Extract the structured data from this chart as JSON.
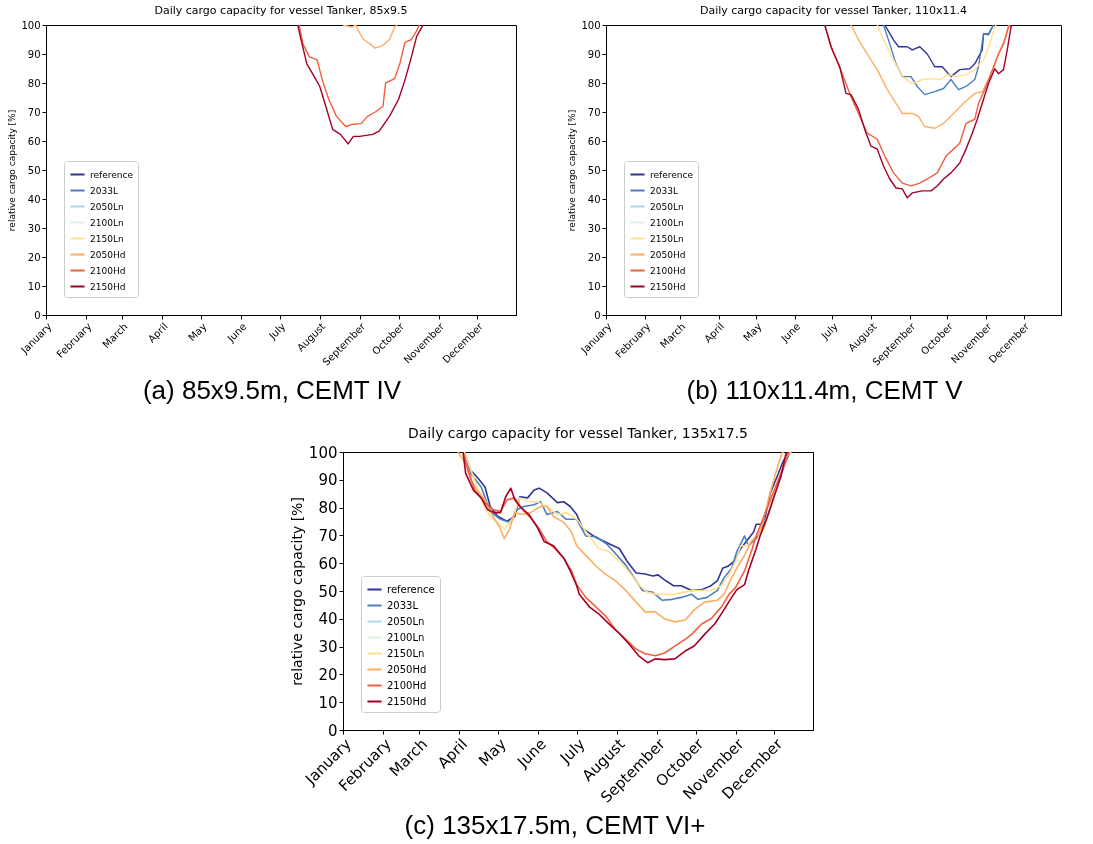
{
  "chart_data": [
    {
      "type": "line",
      "title": "Daily cargo capacity for vessel Tanker, 85x9.5",
      "ylabel": "relative cargo capacity [%]",
      "xlim": [
        "--01-01",
        "--12-31"
      ],
      "ylim": [
        0,
        100
      ],
      "xticks": [
        {
          "value": "--01-01",
          "label": "January"
        },
        {
          "value": "--02-01",
          "label": "February"
        },
        {
          "value": "--03-01",
          "label": "March"
        },
        {
          "value": "--04-01",
          "label": "April"
        },
        {
          "value": "--05-01",
          "label": "May"
        },
        {
          "value": "--06-01",
          "label": "June"
        },
        {
          "value": "--07-01",
          "label": "July"
        },
        {
          "value": "--08-01",
          "label": "August"
        },
        {
          "value": "--09-01",
          "label": "September"
        },
        {
          "value": "--10-01",
          "label": "October"
        },
        {
          "value": "--11-01",
          "label": "November"
        },
        {
          "value": "--12-01",
          "label": "December"
        }
      ],
      "yticks": [
        0,
        10,
        20,
        30,
        40,
        50,
        60,
        70,
        80,
        90,
        100
      ],
      "legend": "bottom left",
      "annotations": [
        "(a) 85x9.5m, CEMT IV"
      ],
      "series": [
        {
          "name": "reference",
          "color": "#313695"
        },
        {
          "name": "2033L",
          "color": "#4a7fc0"
        },
        {
          "name": "2050Ln",
          "color": "#abd9e9"
        },
        {
          "name": "2100Ln",
          "color": "#e0f3e0"
        },
        {
          "name": "2150Ln",
          "color": "#fee090"
        },
        {
          "name": "2050Hd",
          "color": "#fdae61",
          "x": [
            "--08-19",
            "--08-26",
            "--08-29",
            "--08-31",
            "--09-04",
            "--09-09",
            "--09-13",
            "--09-19",
            "--09-24",
            "--09-28",
            "--09-30"
          ],
          "values": [
            100,
            99.3,
            100,
            98,
            95,
            93.5,
            92,
            93,
            95,
            99.3,
            100
          ]
        },
        {
          "name": "2100Hd",
          "color": "#f0603f",
          "x": [
            "--07-16",
            "--07-19",
            "--07-24",
            "--07-30",
            "--08-03",
            "--08-08",
            "--08-14",
            "--08-21",
            "--08-27",
            "--09-02",
            "--09-07",
            "--09-13",
            "--09-19",
            "--09-21",
            "--09-28",
            "--10-02",
            "--10-06",
            "--10-11",
            "--10-15",
            "--10-17"
          ],
          "values": [
            100,
            93.5,
            89,
            88,
            81,
            74.3,
            68.5,
            65,
            65.8,
            66,
            68.5,
            70,
            72,
            80,
            81.5,
            86.6,
            94,
            95,
            98,
            100
          ]
        },
        {
          "name": "2150Hd",
          "color": "#a50026",
          "x": [
            "--07-15",
            "--07-17",
            "--07-22",
            "--07-28",
            "--08-01",
            "--08-05",
            "--08-11",
            "--08-17",
            "--08-23",
            "--08-27",
            "--09-01",
            "--09-11",
            "--09-16",
            "--09-24",
            "--10-01",
            "--10-06",
            "--10-11",
            "--10-15",
            "--10-20"
          ],
          "values": [
            100,
            95.9,
            86.6,
            82,
            78.8,
            73,
            64,
            62.3,
            59,
            61.6,
            61.6,
            62.3,
            63.4,
            68.5,
            74.3,
            81,
            89,
            96,
            100
          ]
        }
      ]
    },
    {
      "type": "line",
      "title": "Daily cargo capacity for vessel Tanker, 110x11.4",
      "ylabel": "relative cargo capacity [%]",
      "xlim": [
        "--01-01",
        "--12-31"
      ],
      "ylim": [
        0,
        100
      ],
      "xticks": [
        {
          "value": "--01-01",
          "label": "January"
        },
        {
          "value": "--02-01",
          "label": "February"
        },
        {
          "value": "--03-01",
          "label": "March"
        },
        {
          "value": "--04-01",
          "label": "April"
        },
        {
          "value": "--05-01",
          "label": "May"
        },
        {
          "value": "--06-01",
          "label": "June"
        },
        {
          "value": "--07-01",
          "label": "July"
        },
        {
          "value": "--08-01",
          "label": "August"
        },
        {
          "value": "--09-01",
          "label": "September"
        },
        {
          "value": "--10-01",
          "label": "October"
        },
        {
          "value": "--11-01",
          "label": "November"
        },
        {
          "value": "--12-01",
          "label": "December"
        }
      ],
      "yticks": [
        0,
        10,
        20,
        30,
        40,
        50,
        60,
        70,
        80,
        90,
        100
      ],
      "legend": "bottom left",
      "annotations": [
        "(b) 110x11.4m, CEMT V"
      ],
      "series": [
        {
          "name": "reference",
          "color": "#313695",
          "x": [
            "--08-12",
            "--08-19",
            "--08-23",
            "--08-30",
            "--09-03",
            "--09-09",
            "--09-15",
            "--09-21",
            "--09-27",
            "--10-04",
            "--10-11",
            "--10-19",
            "--10-23",
            "--10-29",
            "--10-30",
            "--11-03",
            "--11-07"
          ],
          "values": [
            100,
            94.9,
            92.5,
            92.5,
            91.4,
            92.5,
            90,
            85.6,
            85.6,
            82.2,
            84.6,
            84.9,
            86.6,
            91.4,
            96.9,
            96.9,
            100
          ]
        },
        {
          "name": "2033L",
          "color": "#4a7fc0",
          "x": [
            "--08-11",
            "--08-16",
            "--08-21",
            "--08-26",
            "--09-02",
            "--09-07",
            "--09-13",
            "--09-21",
            "--09-28",
            "--10-04",
            "--10-10",
            "--10-16",
            "--10-23",
            "--10-26",
            "--10-30",
            "--11-03",
            "--11-07"
          ],
          "values": [
            100,
            93.5,
            86.6,
            82.2,
            82.2,
            78.8,
            76,
            77,
            78.1,
            81.2,
            77.7,
            78.8,
            81.2,
            85.6,
            96.9,
            96.6,
            100
          ]
        },
        {
          "name": "2050Ln",
          "color": "#abd9e9"
        },
        {
          "name": "2100Ln",
          "color": "#e0f3e0"
        },
        {
          "name": "2150Ln",
          "color": "#fee090",
          "x": [
            "--08-06",
            "--08-11",
            "--08-19",
            "--08-26",
            "--09-03",
            "--09-11",
            "--09-18",
            "--09-26",
            "--10-01",
            "--10-08",
            "--10-16",
            "--10-23",
            "--10-30",
            "--11-04",
            "--11-08",
            "--11-09"
          ],
          "values": [
            100,
            94.9,
            88,
            82.2,
            79.8,
            81.2,
            81.5,
            81.2,
            82.9,
            82.2,
            82.9,
            84.6,
            88,
            93.5,
            99.3,
            100
          ]
        },
        {
          "name": "2050Hd",
          "color": "#fdae61",
          "x": [
            "--07-16",
            "--07-22",
            "--07-29",
            "--08-06",
            "--08-14",
            "--08-21",
            "--08-26",
            "--09-03",
            "--09-08",
            "--09-13",
            "--09-21",
            "--09-28",
            "--10-06",
            "--10-14",
            "--10-23",
            "--10-29",
            "--11-05",
            "--11-11",
            "--11-17",
            "--11-19"
          ],
          "values": [
            100,
            94.9,
            90,
            84.6,
            77.7,
            73,
            69.5,
            69.5,
            68.5,
            65,
            64.4,
            66.1,
            69.5,
            73,
            76.4,
            77,
            83.2,
            90,
            95.9,
            100
          ]
        },
        {
          "name": "2100Hd",
          "color": "#f0603f",
          "x": [
            "--06-25",
            "--07-01",
            "--07-09",
            "--07-16",
            "--07-23",
            "--07-29",
            "--08-06",
            "--08-12",
            "--08-19",
            "--08-26",
            "--09-02",
            "--09-09",
            "--09-15",
            "--09-23",
            "--09-30",
            "--10-06",
            "--10-11",
            "--10-16",
            "--10-23",
            "--10-26",
            "--10-31",
            "--11-05",
            "--11-11",
            "--11-15",
            "--11-19",
            "--11-20"
          ],
          "values": [
            100,
            91.4,
            83.2,
            75.3,
            68.5,
            62.7,
            60.6,
            54.8,
            49,
            45.5,
            44.5,
            45.5,
            46.9,
            49,
            54.8,
            57.2,
            59.2,
            66.1,
            67.5,
            73,
            77.7,
            83.2,
            90,
            93.5,
            99.3,
            100
          ]
        },
        {
          "name": "2150Hd",
          "color": "#a50026",
          "x": [
            "--06-25",
            "--06-30",
            "--07-07",
            "--07-12",
            "--07-16",
            "--07-22",
            "--07-27",
            "--08-01",
            "--08-06",
            "--08-11",
            "--08-16",
            "--08-21",
            "--08-26",
            "--08-30",
            "--09-03",
            "--09-11",
            "--09-18",
            "--09-23",
            "--09-28",
            "--10-04",
            "--10-11",
            "--10-16",
            "--10-21",
            "--10-25",
            "--10-29",
            "--11-03",
            "--11-08",
            "--11-11",
            "--11-15",
            "--11-18",
            "--11-21",
            "--11-22"
          ],
          "values": [
            100,
            92.5,
            85.6,
            76.4,
            76,
            70.9,
            64,
            58.2,
            57.2,
            51.4,
            46.9,
            43.8,
            43.5,
            40.4,
            42.1,
            42.8,
            42.8,
            44.5,
            46.9,
            49,
            52.4,
            57.2,
            62.7,
            67.5,
            73,
            79.8,
            84.9,
            83.2,
            84.6,
            91.4,
            99.3,
            100
          ]
        }
      ]
    },
    {
      "type": "line",
      "title": "Daily cargo capacity for vessel Tanker, 135x17.5",
      "ylabel": "relative cargo capacity [%]",
      "xlim": [
        "--01-01",
        "--12-31"
      ],
      "ylim": [
        0,
        100
      ],
      "xticks": [
        {
          "value": "--01-01",
          "label": "January"
        },
        {
          "value": "--02-01",
          "label": "February"
        },
        {
          "value": "--03-01",
          "label": "March"
        },
        {
          "value": "--04-01",
          "label": "April"
        },
        {
          "value": "--05-01",
          "label": "May"
        },
        {
          "value": "--06-01",
          "label": "June"
        },
        {
          "value": "--07-01",
          "label": "July"
        },
        {
          "value": "--08-01",
          "label": "August"
        },
        {
          "value": "--09-01",
          "label": "September"
        },
        {
          "value": "--10-01",
          "label": "October"
        },
        {
          "value": "--11-01",
          "label": "November"
        },
        {
          "value": "--12-01",
          "label": "December"
        }
      ],
      "yticks": [
        0,
        10,
        20,
        30,
        40,
        50,
        60,
        70,
        80,
        90,
        100
      ],
      "legend": "bottom left",
      "annotations": [
        "(c) 135x17.5m, CEMT VI+"
      ],
      "series": [
        {
          "name": "reference",
          "color": "#313695",
          "x": [
            "--04-05",
            "--04-10",
            "--04-15",
            "--04-21",
            "--04-25",
            "--05-01",
            "--05-08",
            "--05-14",
            "--05-18",
            "--05-24",
            "--05-29",
            "--06-02",
            "--06-08",
            "--06-16",
            "--06-21",
            "--06-26",
            "--07-01",
            "--07-06",
            "--07-14",
            "--07-18",
            "--07-26",
            "--08-03",
            "--08-09",
            "--08-16",
            "--08-23",
            "--08-29",
            "--09-02",
            "--09-07",
            "--09-14",
            "--09-20",
            "--09-28",
            "--10-06",
            "--10-13",
            "--10-18",
            "--10-22",
            "--10-26",
            "--10-31",
            "--11-05",
            "--11-11",
            "--11-15",
            "--11-17",
            "--11-21",
            "--11-24",
            "--11-28",
            "--12-03",
            "--12-08",
            "--12-12",
            "--12-13"
          ],
          "values": [
            100,
            93.3,
            90.9,
            87.4,
            80.4,
            76.8,
            75.1,
            76.8,
            83.9,
            83.5,
            86.3,
            87,
            85.3,
            81.8,
            82.1,
            80.4,
            77.5,
            72.3,
            69.8,
            68.8,
            67,
            65.3,
            60.7,
            56.5,
            56.1,
            55.4,
            55.8,
            54,
            51.9,
            51.9,
            50.2,
            50.5,
            51.9,
            53.7,
            58.2,
            58.9,
            60.7,
            65.3,
            68.8,
            71.2,
            74,
            74,
            76.8,
            85.3,
            90.9,
            96.8,
            99.6,
            100
          ]
        },
        {
          "name": "2033L",
          "color": "#4a7fc0",
          "x": [
            "--04-05",
            "--04-10",
            "--04-18",
            "--04-25",
            "--05-03",
            "--05-10",
            "--05-16",
            "--05-21",
            "--05-29",
            "--06-03",
            "--06-08",
            "--06-16",
            "--06-23",
            "--07-01",
            "--07-08",
            "--07-16",
            "--07-24",
            "--07-31",
            "--08-08",
            "--08-16",
            "--08-21",
            "--08-29",
            "--09-05",
            "--09-13",
            "--09-20",
            "--09-28",
            "--10-03",
            "--10-10",
            "--10-18",
            "--10-23",
            "--10-29",
            "--11-02",
            "--11-08",
            "--11-11",
            "--11-17",
            "--11-21",
            "--11-27",
            "--12-03",
            "--12-10",
            "--12-13",
            "--12-14"
          ],
          "values": [
            100,
            92.3,
            87.4,
            78.6,
            75.8,
            74.7,
            79.3,
            80.4,
            81,
            82.1,
            77.5,
            78.6,
            75.8,
            75.8,
            69.8,
            69.5,
            67,
            63.5,
            59.3,
            53.7,
            50.2,
            49.5,
            46.7,
            47,
            47.7,
            48.8,
            47,
            47.7,
            50.2,
            54.7,
            58.2,
            64.2,
            69.8,
            66.3,
            68.8,
            72.3,
            78.2,
            87.4,
            96.8,
            99.6,
            100
          ]
        },
        {
          "name": "2050Ln",
          "color": "#abd9e9"
        },
        {
          "name": "2100Ln",
          "color": "#e0f3e0"
        },
        {
          "name": "2150Ln",
          "color": "#fee090",
          "x": [
            "--04-05",
            "--04-13",
            "--04-19",
            "--04-25",
            "--05-02",
            "--05-06",
            "--05-12",
            "--05-18",
            "--05-25",
            "--05-31",
            "--06-08",
            "--06-16",
            "--06-23",
            "--07-01",
            "--07-03",
            "--07-11",
            "--07-18",
            "--07-26",
            "--08-03",
            "--08-10",
            "--08-18",
            "--08-25",
            "--09-01",
            "--09-07",
            "--09-15",
            "--09-21",
            "--09-29",
            "--10-06",
            "--10-13",
            "--10-21",
            "--10-27",
            "--11-01",
            "--11-05",
            "--11-10",
            "--11-15",
            "--11-23",
            "--11-28",
            "--12-04",
            "--12-10",
            "--12-13",
            "--12-14"
          ],
          "values": [
            100,
            89.8,
            81.8,
            76.8,
            74,
            72.3,
            75.8,
            83.5,
            82.1,
            82.1,
            80.4,
            77.5,
            78.2,
            75.8,
            74.7,
            69.5,
            65.3,
            64.2,
            60.7,
            57.2,
            52.3,
            49.5,
            48.8,
            48.8,
            48.8,
            49.5,
            50.2,
            50.2,
            50.2,
            51.9,
            55.8,
            60.7,
            66.3,
            66.3,
            68.8,
            72.3,
            80.4,
            89.8,
            97.9,
            99.6,
            100
          ]
        },
        {
          "name": "2050Hd",
          "color": "#fdae61",
          "x": [
            "--03-31",
            "--04-06",
            "--04-10",
            "--04-15",
            "--04-21",
            "--04-27",
            "--05-02",
            "--05-06",
            "--05-10",
            "--05-14",
            "--05-20",
            "--05-26",
            "--06-03",
            "--06-08",
            "--06-13",
            "--06-21",
            "--06-27",
            "--07-01",
            "--07-08",
            "--07-16",
            "--07-24",
            "--07-31",
            "--08-08",
            "--08-16",
            "--08-23",
            "--08-31",
            "--09-07",
            "--09-15",
            "--09-23",
            "--09-30",
            "--10-08",
            "--10-18",
            "--10-23",
            "--10-29",
            "--11-02",
            "--11-08",
            "--11-13",
            "--11-20",
            "--11-24",
            "--11-27",
            "--12-02",
            "--12-07",
            "--12-08"
          ],
          "values": [
            100,
            95.8,
            89.8,
            86.3,
            82.8,
            76.8,
            73.3,
            68.8,
            72.3,
            78.2,
            77.5,
            78.2,
            80.4,
            80.4,
            76.8,
            74.7,
            71.2,
            66.3,
            62.8,
            58.9,
            55.8,
            53.7,
            50.2,
            46,
            42.5,
            42.5,
            40,
            38.9,
            39.6,
            43.2,
            46,
            46.7,
            48.8,
            54.7,
            58.2,
            62.8,
            67.7,
            71.2,
            78.2,
            83.9,
            92.3,
            99.6,
            100
          ]
        },
        {
          "name": "2100Hd",
          "color": "#f0603f",
          "x": [
            "--04-04",
            "--04-08",
            "--04-13",
            "--04-21",
            "--04-27",
            "--05-03",
            "--05-08",
            "--05-14",
            "--05-20",
            "--05-26",
            "--06-02",
            "--06-08",
            "--06-14",
            "--06-21",
            "--06-27",
            "--07-01",
            "--07-08",
            "--07-16",
            "--07-24",
            "--07-31",
            "--08-08",
            "--08-16",
            "--08-23",
            "--08-31",
            "--09-07",
            "--09-15",
            "--09-23",
            "--09-28",
            "--10-06",
            "--10-13",
            "--10-21",
            "--10-27",
            "--11-01",
            "--11-08",
            "--11-14",
            "--11-17",
            "--11-23",
            "--11-28",
            "--12-04",
            "--12-10",
            "--12-12",
            "--12-13"
          ],
          "values": [
            100,
            93.3,
            86.3,
            81.8,
            79.3,
            78.6,
            82.8,
            83.5,
            79.3,
            76.5,
            72.3,
            67.7,
            65.3,
            61.8,
            57.2,
            52.3,
            47.7,
            44.2,
            40.7,
            36.1,
            32.6,
            29.1,
            27.4,
            26.7,
            27.7,
            30.2,
            32.6,
            34.4,
            38.2,
            40,
            44.2,
            48.8,
            51.2,
            57.2,
            65.3,
            69.8,
            76.8,
            82.8,
            89.8,
            96.8,
            99.6,
            100
          ]
        },
        {
          "name": "2150Hd",
          "color": "#a50026",
          "x": [
            "--04-04",
            "--04-06",
            "--04-12",
            "--04-18",
            "--04-23",
            "--04-28",
            "--05-03",
            "--05-07",
            "--05-11",
            "--05-14",
            "--05-18",
            "--05-25",
            "--05-31",
            "--06-06",
            "--06-13",
            "--06-21",
            "--06-26",
            "--07-01",
            "--07-03",
            "--07-11",
            "--07-18",
            "--07-26",
            "--08-03",
            "--08-10",
            "--08-18",
            "--08-25",
            "--08-31",
            "--09-07",
            "--09-15",
            "--09-23",
            "--09-30",
            "--10-08",
            "--10-16",
            "--10-22",
            "--10-29",
            "--11-02",
            "--11-08",
            "--11-11",
            "--11-17",
            "--11-20",
            "--11-25",
            "--11-30",
            "--12-06",
            "--12-10",
            "--12-11"
          ],
          "values": [
            100,
            92.3,
            86.3,
            83.5,
            79.3,
            78.2,
            78.2,
            83.9,
            87,
            82.8,
            80.4,
            77.5,
            73.3,
            67.7,
            66.3,
            61.8,
            57.2,
            51.9,
            48.8,
            44.2,
            41.8,
            38.2,
            34.7,
            31.2,
            26.7,
            24.2,
            25.6,
            25.3,
            25.6,
            28.4,
            30.2,
            34.4,
            38.2,
            42.5,
            47.7,
            50.5,
            52.3,
            57.2,
            65.3,
            69.8,
            75.8,
            82.8,
            90.9,
            99.3,
            100
          ]
        }
      ]
    }
  ]
}
